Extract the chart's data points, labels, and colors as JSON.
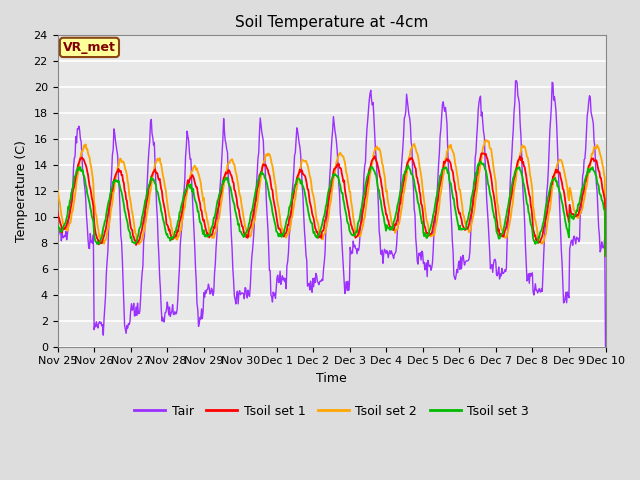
{
  "title": "Soil Temperature at -4cm",
  "xlabel": "Time",
  "ylabel": "Temperature (C)",
  "ylim": [
    0,
    24
  ],
  "yticks": [
    0,
    2,
    4,
    6,
    8,
    10,
    12,
    14,
    16,
    18,
    20,
    22,
    24
  ],
  "xtick_labels": [
    "Nov 25",
    "Nov 26",
    "Nov 27",
    "Nov 28",
    "Nov 29",
    "Nov 30",
    "Dec 1",
    "Dec 2",
    "Dec 3",
    "Dec 4",
    "Dec 5",
    "Dec 6",
    "Dec 7",
    "Dec 8",
    "Dec 9",
    "Dec 10"
  ],
  "n_days": 15,
  "annotation_text": "VR_met",
  "annotation_box_color": "#FFFF99",
  "annotation_text_color": "#800000",
  "annotation_border_color": "#8B4513",
  "line_colors": {
    "Tair": "#9B30FF",
    "Tsoil1": "#FF0000",
    "Tsoil2": "#FFA500",
    "Tsoil3": "#00BB00"
  },
  "line_widths": {
    "Tair": 1.0,
    "Tsoil1": 1.3,
    "Tsoil2": 1.3,
    "Tsoil3": 1.3
  },
  "legend_labels": [
    "Tair",
    "Tsoil set 1",
    "Tsoil set 2",
    "Tsoil set 3"
  ],
  "legend_colors": [
    "#9B30FF",
    "#FF0000",
    "#FFA500",
    "#00BB00"
  ],
  "fig_bg_color": "#DDDDDD",
  "plot_bg_color": "#E8E8E8",
  "grid_color": "#FFFFFF",
  "title_fontsize": 11,
  "axis_label_fontsize": 9,
  "tick_fontsize": 8
}
